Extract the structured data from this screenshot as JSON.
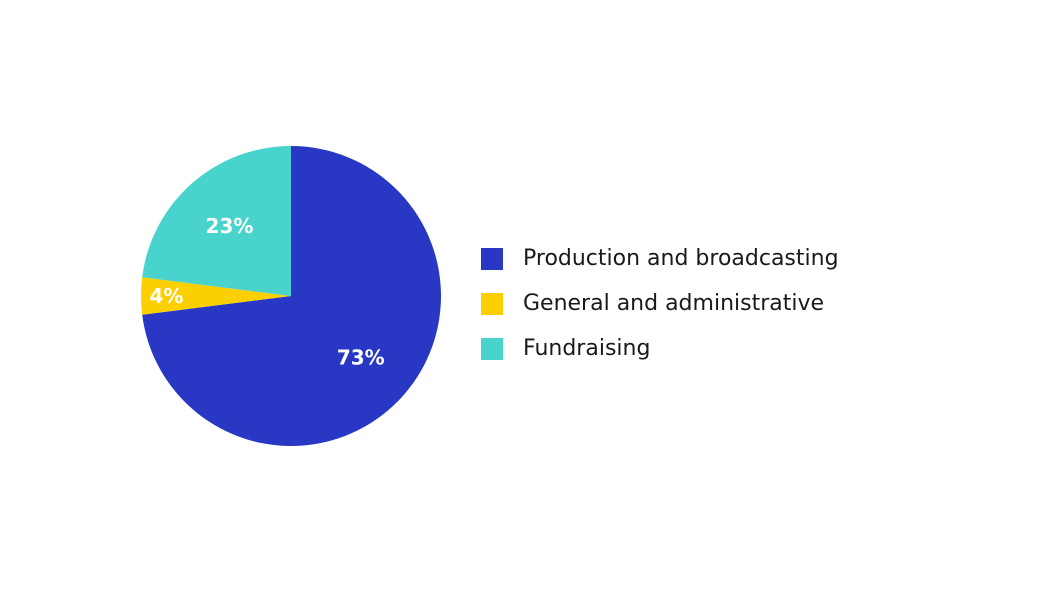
{
  "chart_data": {
    "type": "pie",
    "title": "",
    "categories": [
      "Production and broadcasting",
      "General and administrative",
      "Fundraising"
    ],
    "values": [
      73,
      4,
      23
    ],
    "value_labels": [
      "73%",
      "4%",
      "23%"
    ],
    "colors": [
      "#2838c4",
      "#fccf00",
      "#48d4cc"
    ],
    "legend_position": "right"
  }
}
